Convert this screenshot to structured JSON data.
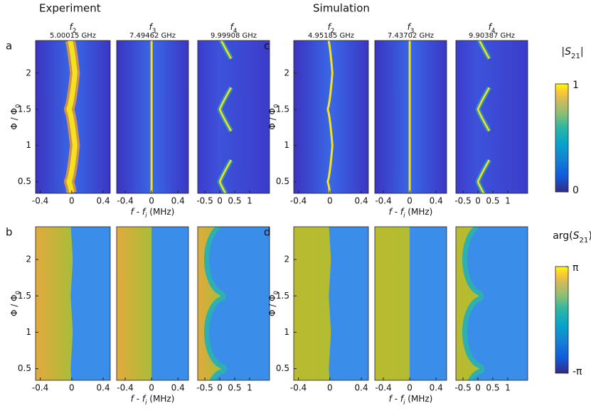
{
  "figure": {
    "ylabel": {
      "text": "Φ / Φ",
      "sub": "0"
    },
    "xlabel": {
      "var": "f",
      "dash": " - ",
      "var2": "f",
      "sub": "i",
      "unit": " (MHz)"
    },
    "ylim": [
      0.34,
      2.45
    ],
    "yticks": [
      0.5,
      1,
      1.5,
      2
    ],
    "columns": [
      {
        "xlim": [
          -0.46,
          0.49
        ],
        "xticks": [
          -0.4,
          0,
          0.4
        ]
      },
      {
        "xlim": [
          -0.53,
          0.56
        ],
        "xticks": [
          -0.4,
          0,
          0.4
        ]
      },
      {
        "xlim": [
          -0.74,
          1.67
        ],
        "xticks": [
          -0.5,
          0,
          0.5,
          1
        ]
      }
    ],
    "groups": [
      {
        "title": "Experiment",
        "panel_labels": [
          "a",
          "b"
        ],
        "headers": [
          {
            "var": "f",
            "sub": "2",
            "freq": "5.00015 GHz"
          },
          {
            "var": "f",
            "sub": "3",
            "freq": "7.49462 GHz"
          },
          {
            "var": "f",
            "sub": "4",
            "freq": "9.99908 GHz"
          }
        ]
      },
      {
        "title": "Simulation",
        "panel_labels": [
          "c",
          "d"
        ],
        "headers": [
          {
            "var": "f",
            "sub": "2",
            "freq": "4.95185 GHz"
          },
          {
            "var": "f",
            "sub": "3",
            "freq": "7.43702 GHz"
          },
          {
            "var": "f",
            "sub": "4",
            "freq": "9.90387 GHz"
          }
        ]
      }
    ],
    "colorbars": [
      {
        "label": {
          "pre": "|",
          "var": "S",
          "sub": "21",
          "post": "|"
        },
        "lim": [
          0,
          1
        ],
        "ticks": [
          0,
          1
        ]
      },
      {
        "label": {
          "pre": "arg(",
          "var": "S",
          "sub": "21",
          "post": ")"
        },
        "lim": [
          -3.14159,
          3.14159
        ],
        "ticks": [
          {
            "value": -3.14159,
            "label": "-π"
          },
          {
            "value": 3.14159,
            "label": "π"
          }
        ]
      }
    ]
  }
}
